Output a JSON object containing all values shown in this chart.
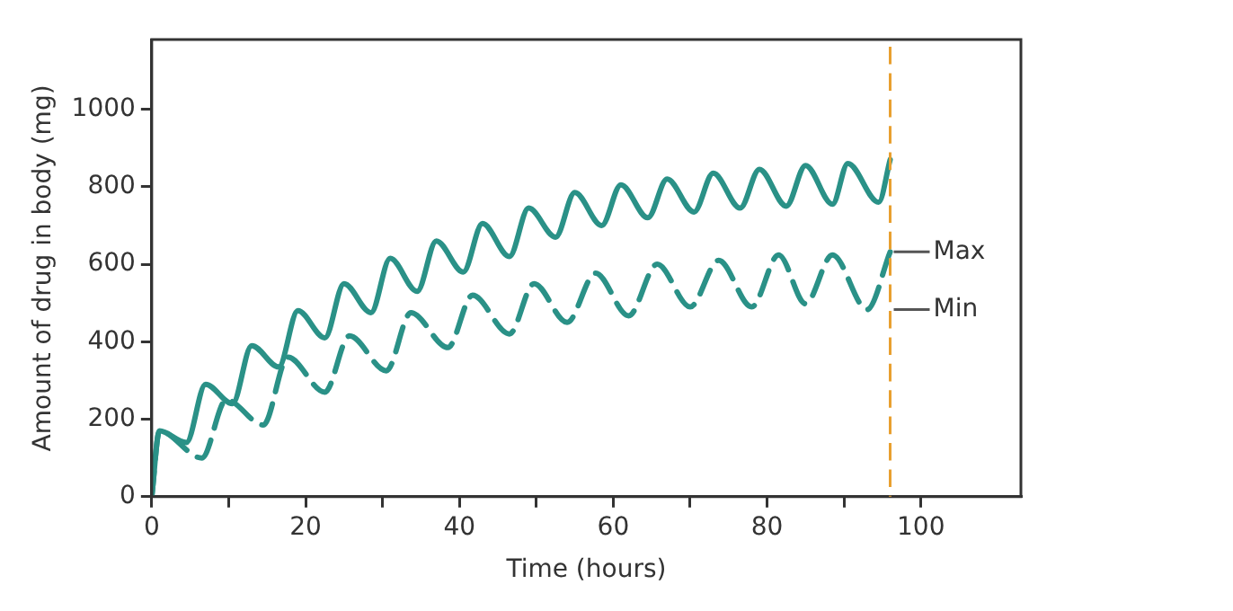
{
  "chart_data": {
    "type": "line",
    "xlabel": "Time (hours)",
    "ylabel": "Amount of drug in body (mg)",
    "xlim": [
      0,
      113
    ],
    "ylim": [
      0,
      1180
    ],
    "xticks": [
      0,
      {
        "value": 10,
        "label": null
      },
      20,
      {
        "value": 30,
        "label": null
      },
      40,
      {
        "value": 50,
        "label": null
      },
      60,
      {
        "value": 70,
        "label": null
      },
      80,
      {
        "value": 90,
        "label": null
      },
      100
    ],
    "yticks": [
      0,
      200,
      400,
      600,
      800,
      1000
    ],
    "marker": "none",
    "series": [
      {
        "color": "#2a9187",
        "line_style": "solid",
        "x": [
          0,
          1,
          4.5,
          7,
          10.5,
          13,
          16.5,
          19,
          22.5,
          25,
          28.5,
          31,
          34.5,
          37,
          40.5,
          43,
          46.5,
          49,
          52.5,
          55,
          58.5,
          61,
          64.5,
          67,
          70.5,
          73,
          76.5,
          79,
          82.5,
          85,
          88.5,
          90.5,
          94.5,
          96
        ],
        "values": [
          0,
          170,
          140,
          290,
          240,
          390,
          335,
          480,
          410,
          550,
          475,
          615,
          530,
          660,
          580,
          705,
          620,
          745,
          670,
          785,
          700,
          805,
          720,
          820,
          735,
          835,
          745,
          845,
          750,
          855,
          755,
          860,
          760,
          870
        ]
      },
      {
        "color": "#2a9187",
        "line_style": "dashed",
        "x": [
          0,
          1,
          6.5,
          9.7,
          14.5,
          17.7,
          22.5,
          25.7,
          30.5,
          33.7,
          38.5,
          41.7,
          46.5,
          49.7,
          54,
          57.7,
          62,
          65.7,
          70,
          73.7,
          78,
          81.5,
          85,
          88.5,
          93,
          96
        ],
        "values": [
          0,
          170,
          100,
          250,
          185,
          360,
          270,
          415,
          325,
          475,
          385,
          520,
          420,
          550,
          450,
          577,
          467,
          600,
          490,
          610,
          490,
          624,
          498,
          624,
          483,
          632
        ]
      }
    ],
    "ref_lines": [
      {
        "axis": "x",
        "value": 96,
        "color": "#e8a030",
        "line_style": "dashed"
      }
    ],
    "annotations": [
      {
        "text": "Max",
        "x": 96,
        "y": 632
      },
      {
        "text": "Min",
        "x": 96,
        "y": 483
      }
    ]
  }
}
